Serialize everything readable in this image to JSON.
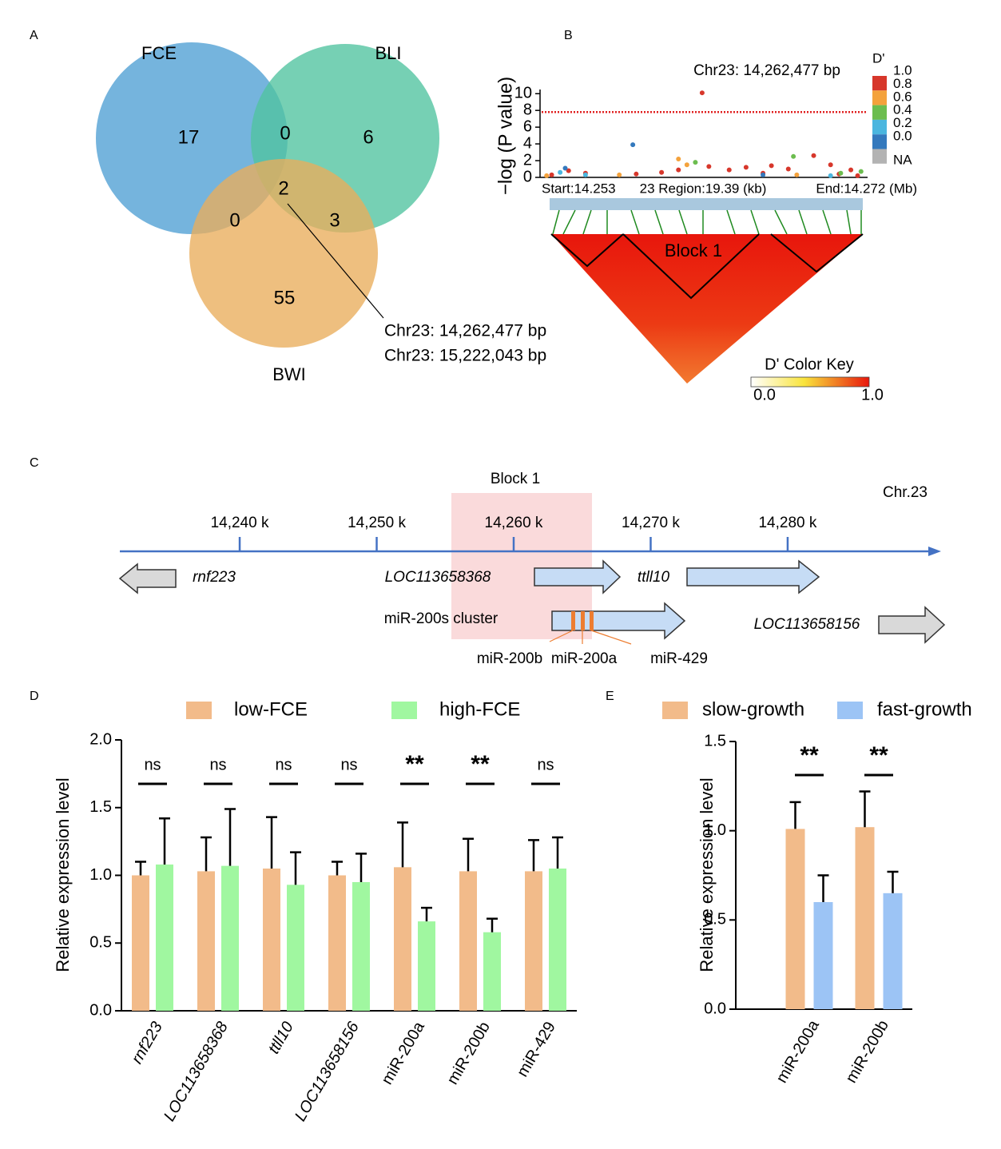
{
  "panel_labels": [
    "A",
    "B",
    "C",
    "D",
    "E"
  ],
  "chart_data": [
    {
      "type": "venn",
      "set_names": [
        "FCE",
        "BLI",
        "BWI"
      ],
      "colors": [
        "#4e9fd4",
        "#4fc39f",
        "#e9ad5b"
      ],
      "values": [
        17,
        0,
        6,
        2,
        0,
        3,
        55
      ],
      "annotation": [
        "Chr23: 14,262,477 bp",
        "Chr23: 15,222,043 bp"
      ]
    },
    {
      "type": "scatter",
      "ylabel": "−log (P value)",
      "title": "Chr23: 14,262,477 bp",
      "xlim": [
        14.253,
        14.272
      ],
      "ylim": [
        0,
        10.5
      ],
      "yticks": [
        0,
        2,
        4,
        6,
        8,
        10
      ],
      "threshold": 7.8,
      "x_start_label": "Start:14.253",
      "x_region_label": "23 Region:19.39 (kb)",
      "x_end_label": "End:14.272 (Mb)",
      "legend": {
        "title": "D'",
        "labels": [
          "1.0",
          "0.8",
          "0.6",
          "0.4",
          "0.2",
          "0.0",
          "NA"
        ],
        "colors": [
          "#d7372b",
          "#f4a23c",
          "#6cbd4f",
          "#4bb6df",
          "#3479bd",
          "#b3b3b3"
        ]
      },
      "series": [
        {
          "color": "#d7372b",
          "x": [
            14.2535,
            14.2545,
            14.2555,
            14.2585,
            14.26,
            14.261,
            14.2624,
            14.2628,
            14.264,
            14.265,
            14.266,
            14.2665,
            14.2675,
            14.269,
            14.27,
            14.2705,
            14.2712,
            14.2716
          ],
          "values": [
            0.3,
            0.8,
            0.5,
            0.4,
            0.6,
            0.9,
            10.1,
            1.3,
            0.9,
            1.2,
            0.5,
            1.4,
            1.0,
            2.6,
            1.5,
            0.4,
            0.9,
            0.2
          ]
        },
        {
          "color": "#f4a23c",
          "x": [
            14.2532,
            14.2575,
            14.261,
            14.2615,
            14.268
          ],
          "values": [
            0.2,
            0.3,
            2.2,
            1.5,
            0.3
          ]
        },
        {
          "color": "#6cbd4f",
          "x": [
            14.262,
            14.2678,
            14.2706,
            14.2718
          ],
          "values": [
            1.8,
            2.5,
            0.5,
            0.7
          ]
        },
        {
          "color": "#4bb6df",
          "x": [
            14.254,
            14.2555,
            14.27
          ],
          "values": [
            0.6,
            0.3,
            0.2
          ]
        },
        {
          "color": "#3479bd",
          "x": [
            14.2543,
            14.2583,
            14.266
          ],
          "values": [
            1.1,
            3.9,
            0.3
          ]
        }
      ]
    },
    {
      "type": "bar",
      "ylabel": "Relative expression level",
      "categories": [
        "rnf223",
        "LOC113658368",
        "ttll10",
        "LOC113658156",
        "miR-200a",
        "miR-200b",
        "miR-429"
      ],
      "italic_categories": [
        true,
        true,
        true,
        true,
        false,
        false,
        false
      ],
      "ylim": [
        0,
        2.0
      ],
      "yticks": [
        {
          "value": 0,
          "label": "0.0"
        },
        {
          "value": 0.5,
          "label": "0.5"
        },
        {
          "value": 1.0,
          "label": "1.0"
        },
        {
          "value": 1.5,
          "label": "1.5"
        },
        {
          "value": 2.0,
          "label": "2.0"
        }
      ],
      "series": [
        {
          "name": "low-FCE",
          "color": "#f2bb8a",
          "values": [
            1.0,
            1.03,
            1.05,
            1.0,
            1.06,
            1.03,
            1.03
          ],
          "errors": [
            0.1,
            0.25,
            0.38,
            0.1,
            0.33,
            0.24,
            0.23
          ]
        },
        {
          "name": "high-FCE",
          "color": "#a0f7a0",
          "values": [
            1.08,
            1.07,
            0.93,
            0.95,
            0.66,
            0.58,
            1.05
          ],
          "errors": [
            0.34,
            0.42,
            0.24,
            0.21,
            0.1,
            0.1,
            0.23
          ]
        }
      ],
      "significance": [
        "ns",
        "ns",
        "ns",
        "ns",
        "**",
        "**",
        "ns"
      ]
    },
    {
      "type": "bar",
      "ylabel": "Relative expression level",
      "categories": [
        "miR-200a",
        "miR-200b"
      ],
      "italic_categories": [
        false,
        false
      ],
      "ylim": [
        0,
        1.5
      ],
      "yticks": [
        {
          "value": 0,
          "label": "0.0"
        },
        {
          "value": 0.5,
          "label": "0.5"
        },
        {
          "value": 1.0,
          "label": "1.0"
        },
        {
          "value": 1.5,
          "label": "1.5"
        }
      ],
      "series": [
        {
          "name": "slow-growth",
          "color": "#f2bb8a",
          "values": [
            1.01,
            1.02
          ],
          "errors": [
            0.15,
            0.2
          ]
        },
        {
          "name": "fast-growth",
          "color": "#9cc4f5",
          "values": [
            0.6,
            0.65
          ],
          "errors": [
            0.15,
            0.12
          ]
        }
      ],
      "significance": [
        "**",
        "**"
      ]
    }
  ],
  "ld_plot": {
    "block_label": "Block 1",
    "color_key_title": "D' Color Key",
    "color_key_min": "0.0",
    "color_key_max": "1.0"
  },
  "gene_map": {
    "chromosome": "Chr.23",
    "block_label": "Block 1",
    "xlim": [
      14231.25,
      14291.2
    ],
    "ticks": [
      {
        "value": 14240,
        "label": "14,240 k"
      },
      {
        "value": 14250,
        "label": "14,250 k"
      },
      {
        "value": 14260,
        "label": "14,260 k"
      },
      {
        "value": 14270,
        "label": "14,270 k"
      },
      {
        "value": 14280,
        "label": "14,280 k"
      }
    ],
    "genes": [
      "rnf223",
      "LOC113658368",
      "ttll10",
      "LOC113658156"
    ],
    "cluster_label": "miR-200s cluster",
    "mirnas": [
      "miR-200b",
      "miR-200a",
      "miR-429"
    ]
  }
}
